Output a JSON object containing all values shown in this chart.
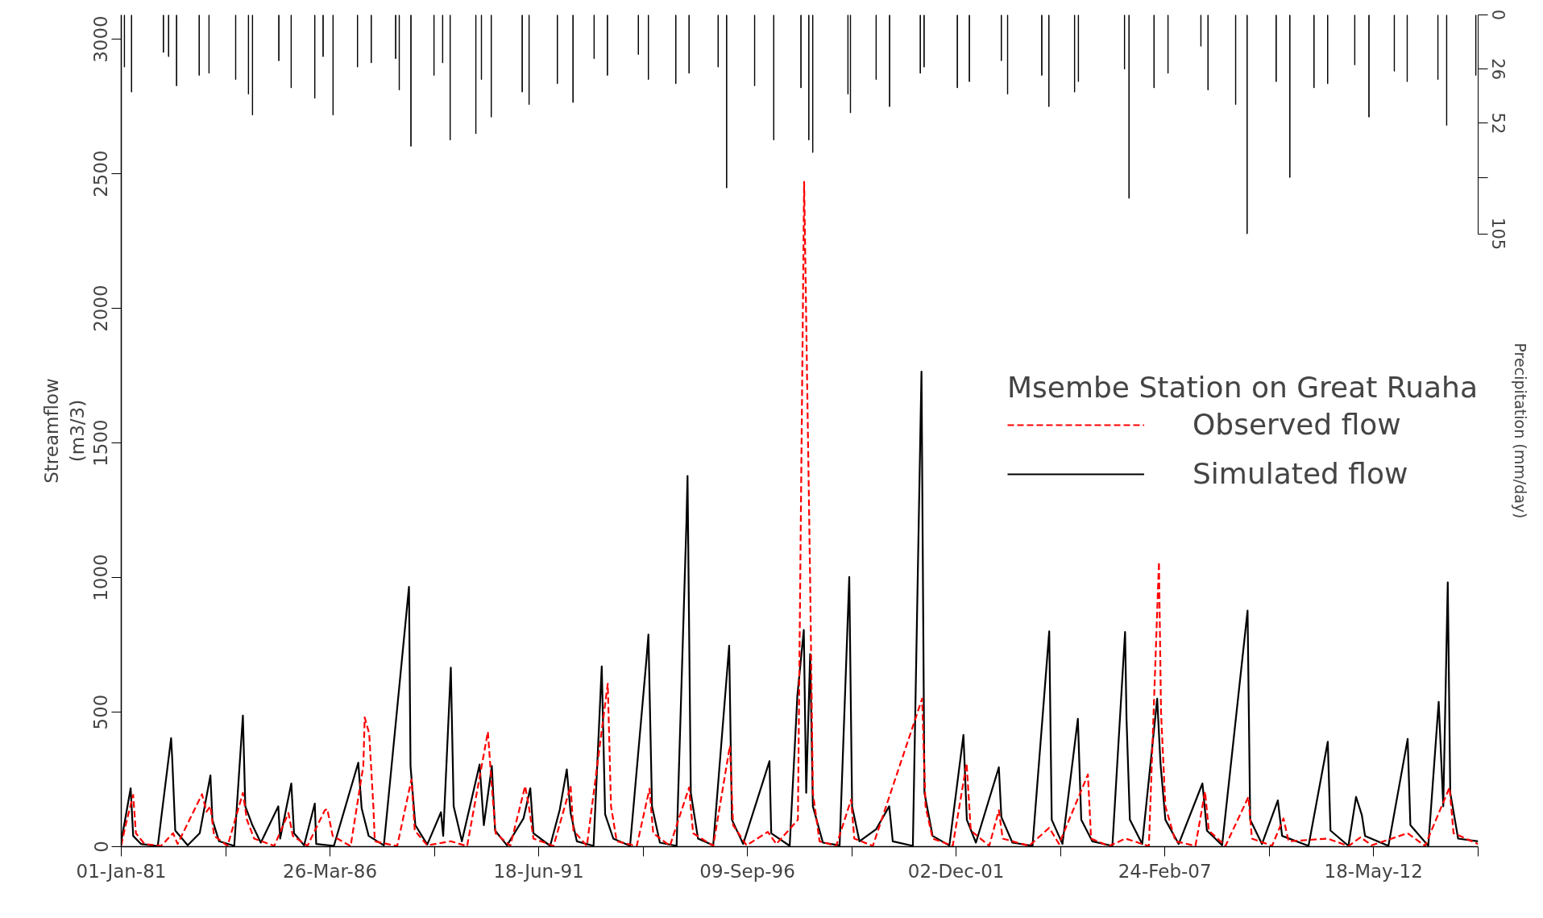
{
  "chart_data": {
    "type": "line",
    "ylabel": "Streamflow\n(m3/3)",
    "y2label": "Precipitation (mm/day)",
    "legend_title": "Msembe Station on Great Ruaha",
    "legend": "right",
    "grid": false,
    "xlim": [
      "1981-01-01",
      "2014-12-31"
    ],
    "xticks": [
      {
        "value": "1981-01-01",
        "label": "01-Jan-81"
      },
      {
        "value": "1983-08-14",
        "label": null
      },
      {
        "value": "1986-03-26",
        "label": "26-Mar-86"
      },
      {
        "value": "1988-11-05",
        "label": null
      },
      {
        "value": "1991-06-18",
        "label": "18-Jun-91"
      },
      {
        "value": "1994-01-28",
        "label": null
      },
      {
        "value": "1996-09-09",
        "label": "09-Sep-96"
      },
      {
        "value": "1999-04-22",
        "label": null
      },
      {
        "value": "2001-12-02",
        "label": "02-Dec-01"
      },
      {
        "value": "2004-07-14",
        "label": null
      },
      {
        "value": "2007-02-24",
        "label": "24-Feb-07"
      },
      {
        "value": "2009-10-06",
        "label": null
      },
      {
        "value": "2012-05-18",
        "label": "18-May-12"
      },
      {
        "value": "2014-12-29",
        "label": null
      }
    ],
    "ylim": [
      0,
      3090
    ],
    "yticks": [
      0,
      500,
      1000,
      1500,
      2000,
      2500,
      3000
    ],
    "y2lim": [
      399,
      0
    ],
    "y2ticks": [
      0,
      26,
      52,
      {
        "value": 78,
        "label": null
      },
      105
    ],
    "series": [
      {
        "name": "Observed flow",
        "color": "#ff0000",
        "line_style": "dashed",
        "x": [
          "1981-01-01",
          "1981-02-10",
          "1981-04-20",
          "1981-05-15",
          "1981-08-01",
          "1982-01-01",
          "1982-04-20",
          "1982-06-01",
          "1983-01-10",
          "1983-02-20",
          "1983-03-28",
          "1983-05-01",
          "1983-09-01",
          "1984-01-19",
          "1984-02-25",
          "1984-05-01",
          "1984-11-01",
          "1985-03-11",
          "1985-04-20",
          "1985-09-01",
          "1986-02-06",
          "1986-03-01",
          "1986-04-20",
          "1986-10-01",
          "1987-01-25",
          "1987-02-07",
          "1987-03-20",
          "1987-04-27",
          "1987-05-10",
          "1987-12-01",
          "1988-04-10",
          "1988-05-10",
          "1988-09-01",
          "1989-04-05",
          "1989-09-01",
          "1990-03-10",
          "1990-04-10",
          "1990-05-20",
          "1990-10-01",
          "1991-02-14",
          "1991-03-20",
          "1991-05-01",
          "1991-11-01",
          "1992-04-05",
          "1992-05-01",
          "1992-09-01",
          "1993-03-11",
          "1993-04-10",
          "1993-06-01",
          "1993-12-01",
          "1994-03-28",
          "1994-05-01",
          "1994-10-01",
          "1995-03-25",
          "1995-05-01",
          "1995-11-01",
          "1996-04-02",
          "1996-05-01",
          "1996-09-01",
          "1997-03-15",
          "1997-06-01",
          "1997-12-15",
          "1998-02-10",
          "1998-04-06",
          "1998-05-01",
          "1998-07-01",
          "1998-12-01",
          "1999-04-16",
          "1999-05-15",
          "1999-11-01",
          "2001-01-25",
          "2001-02-25",
          "2001-05-01",
          "2001-11-01",
          "2002-03-08",
          "2002-04-15",
          "2002-10-01",
          "2002-12-28",
          "2003-02-01",
          "2003-10-01",
          "2004-04-02",
          "2004-07-01",
          "2005-03-22",
          "2005-04-20",
          "2005-10-01",
          "2006-03-01",
          "2006-10-01",
          "2007-01-01",
          "2007-01-20",
          "2007-03-01",
          "2007-06-01",
          "2007-12-01",
          "2008-02-27",
          "2008-04-01",
          "2008-09-01",
          "2009-03-30",
          "2009-05-01",
          "2009-11-01",
          "2010-02-14",
          "2010-04-01",
          "2011-03-26",
          "2011-10-01",
          "2012-01-20",
          "2012-05-01",
          "2013-03-26",
          "2013-09-01",
          "2014-04-13",
          "2014-05-20",
          "2014-12-31"
        ],
        "values": [
          5,
          80,
          192,
          50,
          10,
          3,
          50,
          10,
          195,
          130,
          150,
          40,
          3,
          200,
          100,
          30,
          3,
          125,
          40,
          3,
          135,
          140,
          40,
          2,
          300,
          480,
          420,
          150,
          20,
          2,
          250,
          60,
          5,
          20,
          2,
          427,
          250,
          50,
          3,
          225,
          150,
          30,
          3,
          225,
          60,
          3,
          605,
          150,
          20,
          2,
          215,
          50,
          3,
          220,
          50,
          3,
          375,
          80,
          5,
          55,
          10,
          100,
          2470,
          990,
          200,
          20,
          3,
          175,
          30,
          3,
          550,
          150,
          30,
          3,
          310,
          60,
          3,
          135,
          30,
          3,
          70,
          10,
          268,
          30,
          2,
          30,
          2,
          1058,
          500,
          150,
          20,
          3,
          205,
          60,
          3,
          185,
          30,
          3,
          105,
          20,
          30,
          2,
          35,
          5,
          50,
          3,
          220,
          50,
          10
        ]
      },
      {
        "name": "Simulated flow",
        "color": "#000000",
        "line_style": "solid",
        "x": [
          "1981-01-01",
          "1981-03-28",
          "1981-04-20",
          "1981-07-01",
          "1981-12-01",
          "1982-04-02",
          "1982-04-12",
          "1982-05-10",
          "1982-09-01",
          "1982-12-20",
          "1983-03-28",
          "1983-04-15",
          "1983-06-15",
          "1983-11-01",
          "1984-01-19",
          "1984-02-10",
          "1984-04-15",
          "1984-07-01",
          "1984-12-08",
          "1984-12-25",
          "1985-04-06",
          "1985-05-01",
          "1985-08-01",
          "1985-11-07",
          "1985-11-20",
          "1986-05-01",
          "1986-12-10",
          "1987-01-10",
          "1987-03-15",
          "1987-08-01",
          "1988-03-18",
          "1988-04-01",
          "1988-05-15",
          "1988-09-01",
          "1989-01-05",
          "1989-01-25",
          "1989-04-05",
          "1989-05-01",
          "1989-07-15",
          "1989-12-24",
          "1990-02-01",
          "1990-04-15",
          "1990-05-15",
          "1990-09-01",
          "1991-01-30",
          "1991-04-02",
          "1991-05-01",
          "1991-10-01",
          "1991-12-28",
          "1992-03-01",
          "1992-04-05",
          "1992-06-01",
          "1992-11-01",
          "1993-01-15",
          "1993-02-15",
          "1993-05-01",
          "1993-10-01",
          "1994-03-01",
          "1994-03-18",
          "1994-04-20",
          "1994-07-01",
          "1994-12-01",
          "1995-03-01",
          "1995-03-11",
          "1995-04-10",
          "1995-06-15",
          "1995-11-01",
          "1996-03-26",
          "1996-04-20",
          "1996-08-01",
          "1997-03-30",
          "1997-04-15",
          "1997-10-01",
          "1997-12-10",
          "1998-02-07",
          "1998-03-01",
          "1998-04-06",
          "1998-05-01",
          "1998-08-01",
          "1999-01-01",
          "1999-03-30",
          "1999-04-25",
          "1999-07-01",
          "1999-12-01",
          "2000-03-30",
          "2000-05-01",
          "2000-11-01",
          "2001-01-19",
          "2001-02-15",
          "2001-05-01",
          "2001-10-01",
          "2002-02-07",
          "2002-03-10",
          "2002-06-01",
          "2002-12-28",
          "2003-01-20",
          "2003-05-01",
          "2003-11-01",
          "2004-04-02",
          "2004-04-25",
          "2004-08-01",
          "2004-12-20",
          "2005-01-20",
          "2005-05-01",
          "2005-11-01",
          "2006-02-25",
          "2006-03-10",
          "2006-04-10",
          "2006-08-01",
          "2006-12-16",
          "2007-01-15",
          "2007-03-01",
          "2007-07-01",
          "2008-02-03",
          "2008-03-15",
          "2008-08-01",
          "2009-03-22",
          "2009-04-15",
          "2009-08-01",
          "2009-12-24",
          "2010-02-01",
          "2010-10-01",
          "2011-03-26",
          "2011-04-20",
          "2011-10-01",
          "2011-12-10",
          "2012-02-01",
          "2012-03-01",
          "2012-10-01",
          "2013-03-26",
          "2013-04-20",
          "2013-10-01",
          "2014-01-04",
          "2014-02-15",
          "2014-03-28",
          "2014-04-20",
          "2014-07-01",
          "2014-12-31"
        ],
        "values": [
          20,
          217,
          40,
          10,
          2,
          403,
          330,
          60,
          5,
          50,
          265,
          100,
          20,
          3,
          487,
          150,
          80,
          15,
          150,
          30,
          235,
          50,
          5,
          160,
          10,
          3,
          312,
          142,
          40,
          5,
          965,
          300,
          80,
          8,
          128,
          40,
          665,
          150,
          20,
          305,
          80,
          300,
          60,
          5,
          105,
          217,
          50,
          3,
          138,
          287,
          125,
          20,
          3,
          670,
          120,
          30,
          3,
          700,
          788,
          150,
          15,
          3,
          1205,
          1377,
          200,
          30,
          5,
          747,
          100,
          10,
          318,
          50,
          3,
          560,
          805,
          200,
          715,
          150,
          15,
          5,
          1002,
          150,
          20,
          65,
          150,
          20,
          3,
          1765,
          200,
          40,
          4,
          415,
          100,
          15,
          295,
          110,
          15,
          3,
          800,
          100,
          10,
          475,
          100,
          20,
          3,
          798,
          478,
          100,
          10,
          550,
          310,
          100,
          10,
          235,
          60,
          5,
          877,
          100,
          10,
          172,
          40,
          3,
          390,
          60,
          3,
          185,
          117,
          40,
          3,
          400,
          80,
          3,
          538,
          150,
          982,
          200,
          30,
          20
        ]
      },
      {
        "type": "bar",
        "axis": "y2",
        "color": "#000000",
        "x": [
          "1981-01-30",
          "1981-04-05",
          "1982-01-22",
          "1982-03-10",
          "1982-05-22",
          "1982-12-15",
          "1983-03-15",
          "1983-11-14",
          "1984-03-10",
          "1984-04-16",
          "1984-12-13",
          "1985-04-05",
          "1985-11-07",
          "1986-01-22",
          "1986-04-23",
          "1986-12-03",
          "1987-04-08",
          "1987-11-17",
          "1987-12-20",
          "1988-04-05",
          "1988-11-02",
          "1989-01-20",
          "1989-03-30",
          "1989-11-20",
          "1990-01-10",
          "1990-04-10",
          "1991-01-18",
          "1991-03-22",
          "1991-12-06",
          "1992-04-27",
          "1992-11-06",
          "1993-03-08",
          "1993-12-16",
          "1994-03-18",
          "1994-11-24",
          "1995-03-25",
          "1995-12-16",
          "1996-03-03",
          "1996-11-14",
          "1997-05-08",
          "1998-01-12",
          "1998-03-25",
          "1998-04-30",
          "1999-03-18",
          "1999-04-10",
          "1999-12-01",
          "2000-04-02",
          "2001-01-08",
          "2001-02-12",
          "2001-12-13",
          "2002-04-02",
          "2003-01-20",
          "2003-03-18",
          "2004-01-25",
          "2004-03-30",
          "2004-11-20",
          "2004-12-25",
          "2006-02-20",
          "2006-04-02",
          "2006-11-17",
          "2007-03-25",
          "2008-01-20",
          "2008-03-25",
          "2008-12-03",
          "2009-03-18",
          "2009-12-09",
          "2010-04-13",
          "2010-11-20",
          "2011-03-25",
          "2011-11-28",
          "2012-04-06",
          "2012-11-24",
          "2013-03-22",
          "2013-12-28",
          "2014-03-18",
          "2014-12-10"
        ],
        "values": [
          25,
          37,
          18,
          20,
          34,
          29,
          28,
          31,
          38,
          48,
          22,
          35,
          40,
          20,
          48,
          25,
          23,
          21,
          36,
          63,
          29,
          23,
          60,
          57,
          31,
          49,
          37,
          43,
          33,
          42,
          21,
          29,
          19,
          31,
          33,
          28,
          25,
          83,
          34,
          60,
          35,
          60,
          66,
          38,
          47,
          31,
          44,
          28,
          25,
          35,
          32,
          22,
          38,
          29,
          44,
          37,
          32,
          26,
          88,
          35,
          28,
          15,
          36,
          43,
          105,
          32,
          78,
          35,
          33,
          24,
          49,
          27,
          32,
          31,
          53,
          29
        ]
      }
    ]
  }
}
